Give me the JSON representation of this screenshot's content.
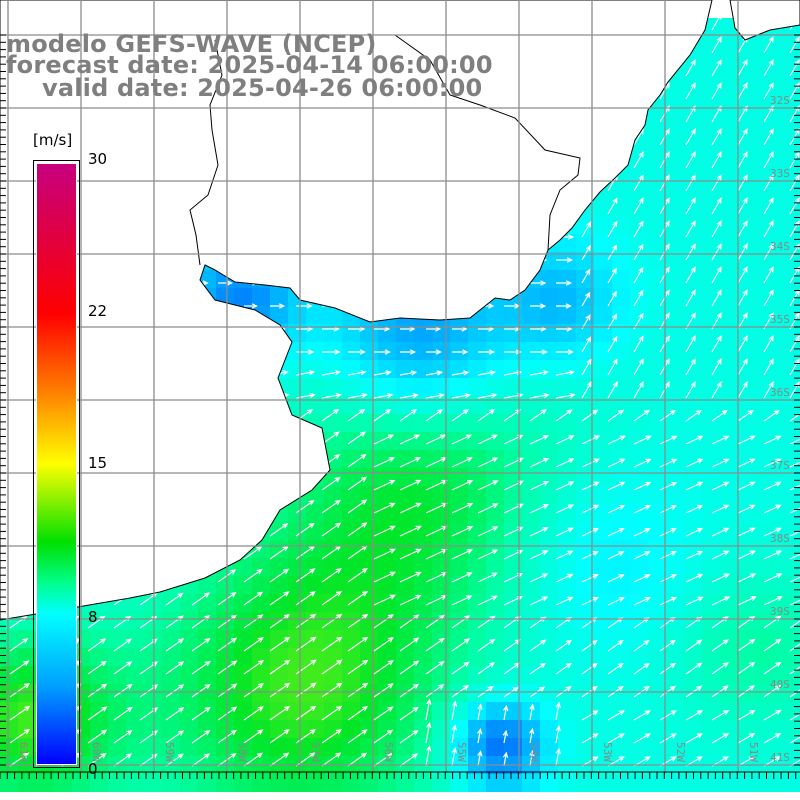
{
  "header": {
    "model": "modelo GEFS-WAVE (NCEP)",
    "forecast": "forecast date: 2025-04-14 06:00:00",
    "valid": "valid date: 2025-04-26 06:00:00"
  },
  "colorbar": {
    "unit": "[m/s]",
    "ticks": [
      {
        "label": "30",
        "value": 30
      },
      {
        "label": "22",
        "value": 22
      },
      {
        "label": "15",
        "value": 15
      },
      {
        "label": "8",
        "value": 8
      },
      {
        "label": "0",
        "value": 0
      }
    ]
  },
  "grid": {
    "lon_labels": [
      "61W",
      "60W",
      "59W",
      "58W",
      "57W",
      "56W",
      "55W",
      "54W",
      "53W",
      "52W",
      "51W"
    ],
    "lat_labels": [
      "32S",
      "33S",
      "34S",
      "35S",
      "36S",
      "37S",
      "38S",
      "39S",
      "40S",
      "41S"
    ]
  },
  "colors": {
    "land": "#ffffff",
    "coast": "#000000",
    "grid": "#8c8c8c",
    "arrow": "#ffffff",
    "title": "#7f7f7f"
  }
}
